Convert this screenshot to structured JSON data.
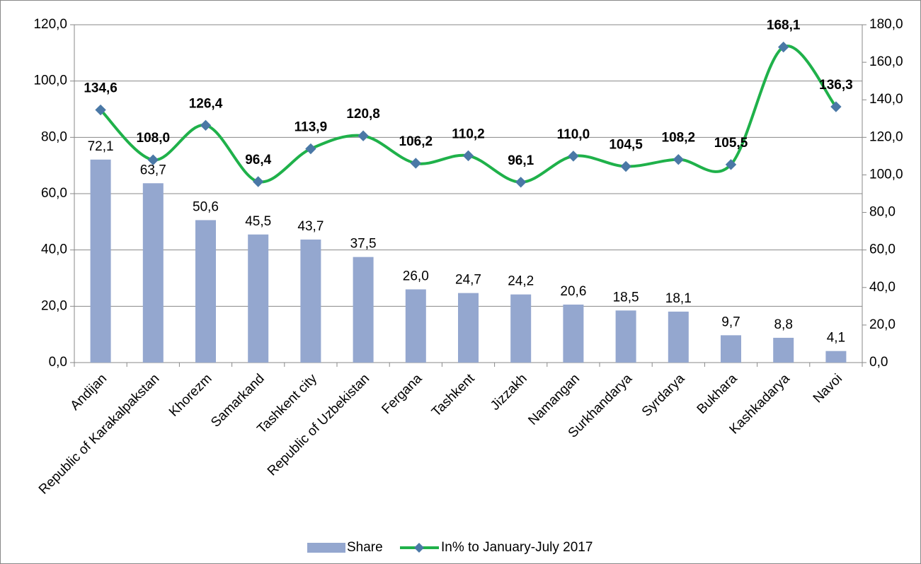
{
  "chart_data": {
    "type": "bar_line",
    "categories": [
      "Andijan",
      "Republic of Karakalpakstan",
      "Khorezm",
      "Samarkand",
      "Tashkent city",
      "Republic of Uzbekistan",
      "Fergana",
      "Tashkent",
      "Jizzakh",
      "Namangan",
      "Surkhandarya",
      "Syrdarya",
      "Bukhara",
      "Kashkadarya",
      "Navoi"
    ],
    "series": [
      {
        "name": "Share",
        "color": "#94a7cf",
        "type": "bar",
        "values": [
          72.1,
          63.7,
          50.6,
          45.5,
          43.7,
          37.5,
          26.0,
          24.7,
          24.2,
          20.6,
          18.5,
          18.1,
          9.7,
          8.8,
          4.1
        ],
        "value_labels": [
          "72,1",
          "63,7",
          "50,6",
          "45,5",
          "43,7",
          "37,5",
          "26,0",
          "24,7",
          "24,2",
          "20,6",
          "18,5",
          "18,1",
          "9,7",
          "8,8",
          "4,1"
        ]
      },
      {
        "name": "In% to January-July 2017",
        "color": "#1fb14a",
        "marker_color": "#4a78a6",
        "type": "line",
        "axis": "y2",
        "values": [
          134.6,
          108.0,
          126.4,
          96.4,
          113.9,
          120.8,
          106.2,
          110.2,
          96.1,
          110.0,
          104.5,
          108.2,
          105.5,
          168.1,
          136.3
        ],
        "value_labels": [
          "134,6",
          "108,0",
          "126,4",
          "96,4",
          "113,9",
          "120,8",
          "106,2",
          "110,2",
          "96,1",
          "110,0",
          "104,5",
          "108,2",
          "105,5",
          "168,1",
          "136,3"
        ]
      }
    ],
    "ylim": [
      0,
      120
    ],
    "yticks": [
      {
        "value": 0,
        "label": "0,0"
      },
      {
        "value": 20,
        "label": "20,0"
      },
      {
        "value": 40,
        "label": "40,0"
      },
      {
        "value": 60,
        "label": "60,0"
      },
      {
        "value": 80,
        "label": "80,0"
      },
      {
        "value": 100,
        "label": "100,0"
      },
      {
        "value": 120,
        "label": "120,0"
      }
    ],
    "y2lim": [
      0,
      180
    ],
    "y2ticks": [
      {
        "value": 0,
        "label": "0,0"
      },
      {
        "value": 20,
        "label": "20,0"
      },
      {
        "value": 40,
        "label": "40,0"
      },
      {
        "value": 60,
        "label": "60,0"
      },
      {
        "value": 80,
        "label": "80,0"
      },
      {
        "value": 100,
        "label": "100,0"
      },
      {
        "value": 120,
        "label": "120,0"
      },
      {
        "value": 140,
        "label": "140,0"
      },
      {
        "value": 160,
        "label": "160,0"
      },
      {
        "value": 180,
        "label": "180,0"
      }
    ],
    "grid": true,
    "legend": "bottom"
  }
}
